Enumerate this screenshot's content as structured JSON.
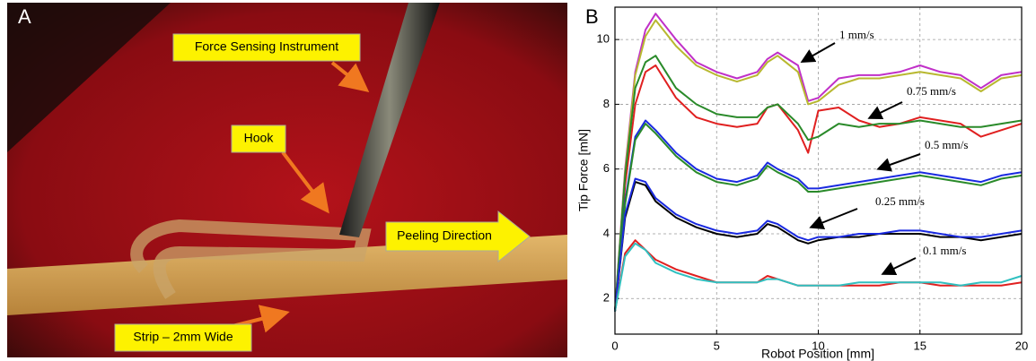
{
  "panel_a": {
    "letter": "A",
    "labels": [
      "Force Sensing Instrument",
      "Hook",
      "Peeling Direction",
      "Strip – 2mm Wide"
    ]
  },
  "chart_data": {
    "type": "line",
    "panel_letter": "B",
    "x_label": "Robot Position [mm]",
    "y_label": "Tip Force [mN]",
    "x": [
      0,
      0.5,
      1,
      1.5,
      2,
      3,
      4,
      5,
      6,
      7,
      7.5,
      8,
      9,
      9.5,
      10,
      11,
      12,
      13,
      14,
      15,
      16,
      17,
      18,
      19,
      20
    ],
    "xlim": [
      0,
      20
    ],
    "xticks": [
      0,
      5,
      10,
      15,
      20
    ],
    "ylim": [
      0.9,
      11
    ],
    "yticks": [
      2,
      4,
      6,
      8,
      10
    ],
    "grid": true,
    "series": [
      {
        "color": "#c030c8",
        "values": [
          1.6,
          6.0,
          9.0,
          10.3,
          10.8,
          10.0,
          9.3,
          9.0,
          8.8,
          9.0,
          9.4,
          9.6,
          9.2,
          8.1,
          8.2,
          8.8,
          8.9,
          8.9,
          9.0,
          9.2,
          9.0,
          8.9,
          8.5,
          8.9,
          9.0
        ]
      },
      {
        "color": "#b8b830",
        "values": [
          1.6,
          5.9,
          8.9,
          10.1,
          10.6,
          9.8,
          9.2,
          8.9,
          8.7,
          8.9,
          9.3,
          9.5,
          9.0,
          8.0,
          8.1,
          8.6,
          8.8,
          8.8,
          8.9,
          9.0,
          8.9,
          8.8,
          8.4,
          8.8,
          8.9
        ]
      },
      {
        "color": "#e02020",
        "values": [
          1.6,
          5.5,
          8.0,
          9.0,
          9.2,
          8.2,
          7.6,
          7.4,
          7.3,
          7.4,
          7.9,
          8.0,
          7.2,
          6.5,
          7.8,
          7.9,
          7.5,
          7.3,
          7.4,
          7.6,
          7.5,
          7.4,
          7.0,
          7.2,
          7.4
        ]
      },
      {
        "color": "#2a8a2a",
        "values": [
          1.6,
          5.8,
          8.5,
          9.3,
          9.5,
          8.5,
          8.0,
          7.7,
          7.6,
          7.6,
          7.9,
          8.0,
          7.4,
          6.9,
          7.0,
          7.4,
          7.3,
          7.4,
          7.4,
          7.5,
          7.4,
          7.3,
          7.3,
          7.4,
          7.5
        ]
      },
      {
        "color": "#1a2ae0",
        "values": [
          1.6,
          5.0,
          7.0,
          7.5,
          7.2,
          6.5,
          6.0,
          5.7,
          5.6,
          5.8,
          6.2,
          6.0,
          5.7,
          5.4,
          5.4,
          5.5,
          5.6,
          5.7,
          5.8,
          5.9,
          5.8,
          5.7,
          5.6,
          5.8,
          5.9
        ]
      },
      {
        "color": "#2a8a2a",
        "values": [
          1.6,
          4.9,
          6.9,
          7.4,
          7.1,
          6.4,
          5.9,
          5.6,
          5.5,
          5.7,
          6.1,
          5.9,
          5.6,
          5.3,
          5.3,
          5.4,
          5.5,
          5.6,
          5.7,
          5.8,
          5.7,
          5.6,
          5.5,
          5.7,
          5.8
        ]
      },
      {
        "color": "#000000",
        "values": [
          1.6,
          4.5,
          5.6,
          5.5,
          5.0,
          4.5,
          4.2,
          4.0,
          3.9,
          4.0,
          4.3,
          4.2,
          3.8,
          3.7,
          3.8,
          3.9,
          3.9,
          4.0,
          4.0,
          4.0,
          3.9,
          3.9,
          3.8,
          3.9,
          4.0
        ]
      },
      {
        "color": "#1a2ae0",
        "values": [
          1.6,
          4.6,
          5.7,
          5.6,
          5.1,
          4.6,
          4.3,
          4.1,
          4.0,
          4.1,
          4.4,
          4.3,
          3.9,
          3.8,
          3.9,
          3.9,
          4.0,
          4.0,
          4.1,
          4.1,
          4.0,
          3.9,
          3.9,
          4.0,
          4.1
        ]
      },
      {
        "color": "#e02020",
        "values": [
          1.6,
          3.4,
          3.8,
          3.5,
          3.2,
          2.9,
          2.7,
          2.5,
          2.5,
          2.5,
          2.7,
          2.6,
          2.4,
          2.4,
          2.4,
          2.4,
          2.4,
          2.4,
          2.5,
          2.5,
          2.4,
          2.4,
          2.4,
          2.4,
          2.5
        ]
      },
      {
        "color": "#30c0c0",
        "values": [
          1.6,
          3.3,
          3.7,
          3.5,
          3.1,
          2.8,
          2.6,
          2.5,
          2.5,
          2.5,
          2.6,
          2.6,
          2.4,
          2.4,
          2.4,
          2.4,
          2.5,
          2.5,
          2.5,
          2.5,
          2.5,
          2.4,
          2.5,
          2.5,
          2.7
        ]
      }
    ],
    "annotations": [
      "1 mm/s",
      "0.75 mm/s",
      "0.5 mm/s",
      "0.25 mm/s",
      "0.1 mm/s"
    ]
  }
}
